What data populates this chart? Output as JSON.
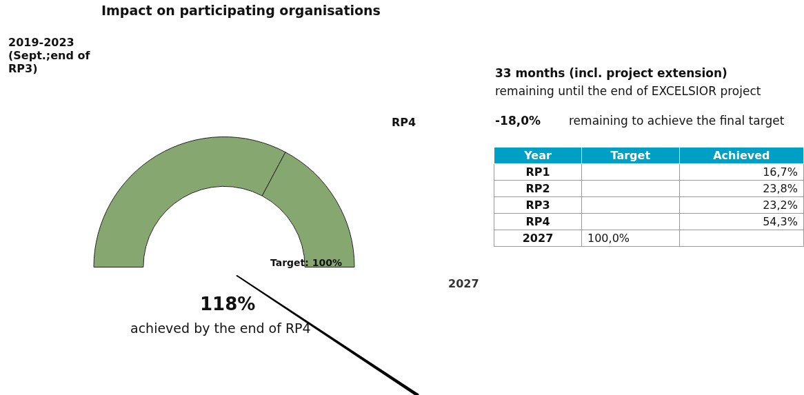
{
  "chart_data": [
    {
      "type": "donut",
      "title": "Impact on participating organisations",
      "categories": [
        "2019-2023 (Sept.;end of RP3)",
        "RP4"
      ],
      "values": [
        65.6,
        34.4
      ],
      "colors": [
        "#86a870",
        "#86a870"
      ],
      "annotations": [
        "Target: 100%",
        "2027",
        "118%",
        "achieved by the end of RP4"
      ]
    },
    {
      "type": "other",
      "title": "33 months (incl. project extension)",
      "subtitle": "remaining until the end of EXCELSIOR project",
      "annotations": [
        "-18,0%",
        "remaining to achieve the final target"
      ],
      "xlabel": "Year",
      "categories": [
        "RP1",
        "RP2",
        "RP3",
        "RP4",
        "2027"
      ],
      "series": [
        {
          "name": "Target",
          "values": [
            null,
            null,
            null,
            null,
            100.0
          ],
          "value_labels": [
            null,
            null,
            null,
            null,
            "100,0%"
          ]
        },
        {
          "name": "Achieved",
          "values": [
            16.7,
            23.8,
            23.2,
            54.3,
            null
          ],
          "value_labels": [
            "16,7%",
            "23,8%",
            "23,2%",
            "54,3%",
            null
          ]
        }
      ]
    }
  ]
}
